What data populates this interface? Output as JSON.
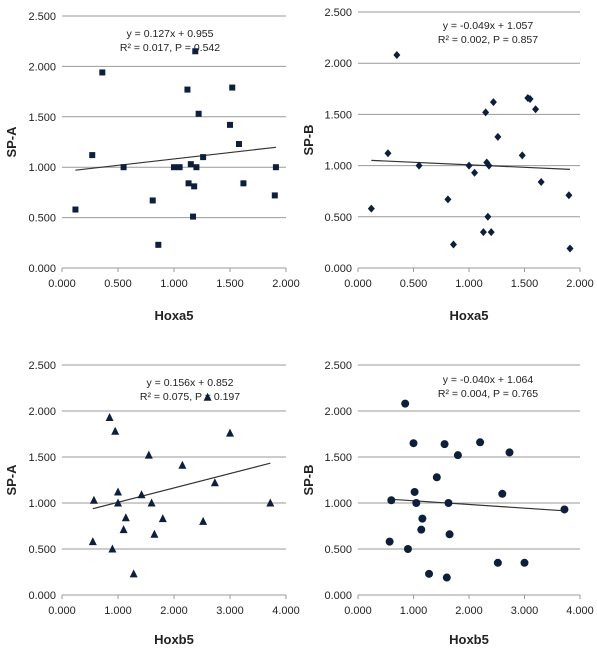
{
  "chart_data": [
    {
      "type": "scatter",
      "marker": "square",
      "xlabel": "Hoxa5",
      "ylabel": "SP-A",
      "equation": "y = 0.127x + 0.955",
      "stats": "R² = 0.017, P = 0.542",
      "trend": {
        "slope": 0.127,
        "intercept": 0.955
      },
      "xlim": [
        0,
        2
      ],
      "ylim": [
        0,
        2.5
      ],
      "x_ticks": [
        "0.000",
        "0.500",
        "1.000",
        "1.500",
        "2.000"
      ],
      "y_ticks": [
        "0.000",
        "0.500",
        "1.000",
        "1.500",
        "2.000",
        "2.500"
      ],
      "x": [
        0.12,
        0.27,
        0.36,
        0.55,
        0.81,
        0.86,
        1.0,
        1.05,
        1.12,
        1.13,
        1.15,
        1.17,
        1.18,
        1.19,
        1.2,
        1.22,
        1.26,
        1.5,
        1.52,
        1.58,
        1.62,
        1.9,
        1.91
      ],
      "y": [
        0.58,
        1.12,
        1.94,
        1.0,
        0.67,
        0.23,
        1.0,
        1.0,
        1.77,
        0.84,
        1.03,
        0.51,
        0.81,
        2.15,
        1.0,
        1.53,
        1.1,
        1.42,
        1.79,
        1.23,
        0.84,
        0.72,
        1.0
      ]
    },
    {
      "type": "scatter",
      "marker": "diamond",
      "xlabel": "Hoxa5",
      "ylabel": "SP-B",
      "equation": "y = -0.049x + 1.057",
      "stats": "R² = 0.002, P = 0.857",
      "trend": {
        "slope": -0.049,
        "intercept": 1.057
      },
      "xlim": [
        0,
        2
      ],
      "ylim": [
        0,
        2.5
      ],
      "x_ticks": [
        "0.000",
        "0.500",
        "1.000",
        "1.500",
        "2.000"
      ],
      "y_ticks": [
        "0.000",
        "0.500",
        "1.000",
        "1.500",
        "2.000",
        "2.500"
      ],
      "x": [
        0.12,
        0.27,
        0.35,
        0.55,
        0.81,
        0.86,
        1.0,
        1.05,
        1.13,
        1.15,
        1.16,
        1.17,
        1.18,
        1.2,
        1.22,
        1.26,
        1.48,
        1.53,
        1.55,
        1.6,
        1.65,
        1.9,
        1.91
      ],
      "y": [
        0.58,
        1.12,
        2.08,
        1.0,
        0.67,
        0.23,
        1.0,
        0.93,
        0.35,
        1.52,
        1.03,
        0.5,
        1.0,
        0.35,
        1.62,
        1.28,
        1.1,
        1.66,
        1.65,
        1.55,
        0.84,
        0.71,
        0.19
      ]
    },
    {
      "type": "scatter",
      "marker": "triangle",
      "xlabel": "Hoxb5",
      "ylabel": "SP-A",
      "equation": "y = 0.156x + 0.852",
      "stats": "R² = 0.075, P = 0.197",
      "trend": {
        "slope": 0.156,
        "intercept": 0.852
      },
      "xlim": [
        0,
        4
      ],
      "ylim": [
        0,
        2.5
      ],
      "x_ticks": [
        "0.000",
        "1.000",
        "2.000",
        "3.000",
        "4.000"
      ],
      "y_ticks": [
        "0.000",
        "0.500",
        "1.000",
        "1.500",
        "2.000",
        "2.500"
      ],
      "x": [
        0.55,
        0.57,
        0.85,
        0.9,
        0.95,
        1.0,
        1.0,
        1.1,
        1.14,
        1.28,
        1.42,
        1.55,
        1.6,
        1.65,
        1.8,
        2.15,
        2.52,
        2.6,
        2.73,
        3.0,
        3.72
      ],
      "y": [
        0.58,
        1.03,
        1.93,
        0.5,
        1.78,
        1.12,
        1.0,
        0.71,
        0.84,
        0.23,
        1.09,
        1.52,
        1.0,
        0.66,
        0.83,
        1.41,
        0.8,
        2.15,
        1.22,
        1.76,
        1.0
      ]
    },
    {
      "type": "scatter",
      "marker": "circle",
      "xlabel": "Hoxb5",
      "ylabel": "SP-B",
      "equation": "y = -0.040x + 1.064",
      "stats": "R² = 0.004, P = 0.765",
      "trend": {
        "slope": -0.04,
        "intercept": 1.064
      },
      "xlim": [
        0,
        4
      ],
      "ylim": [
        0,
        2.5
      ],
      "x_ticks": [
        "0.000",
        "1.000",
        "2.000",
        "3.000",
        "4.000"
      ],
      "y_ticks": [
        "0.000",
        "0.500",
        "1.000",
        "1.500",
        "2.000",
        "2.500"
      ],
      "x": [
        0.57,
        0.6,
        0.85,
        0.9,
        1.0,
        1.02,
        1.05,
        1.14,
        1.16,
        1.28,
        1.42,
        1.56,
        1.6,
        1.63,
        1.65,
        1.8,
        2.2,
        2.52,
        2.6,
        2.73,
        3.0,
        3.72
      ],
      "y": [
        0.58,
        1.03,
        2.08,
        0.5,
        1.65,
        1.12,
        1.0,
        0.71,
        0.83,
        0.23,
        1.28,
        1.64,
        0.19,
        1.0,
        0.66,
        1.52,
        1.66,
        0.35,
        1.1,
        1.55,
        0.35,
        0.93
      ]
    }
  ],
  "colors": {
    "marker": "#0d1f3a",
    "grid": "#9a9a9a",
    "trend": "#333333"
  }
}
